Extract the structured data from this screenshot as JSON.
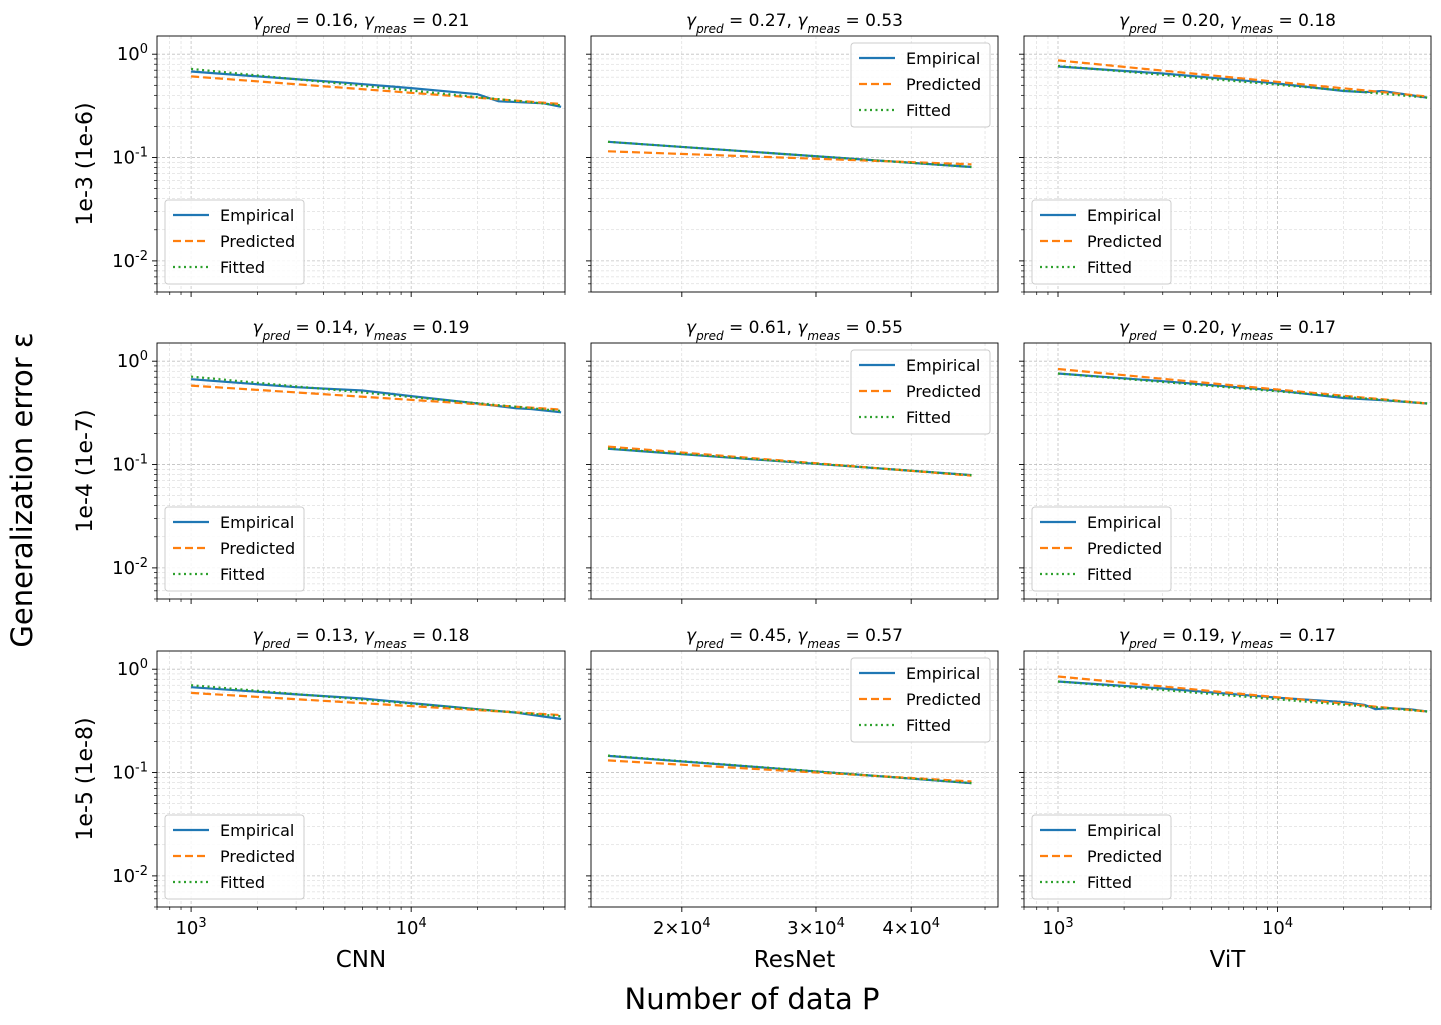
{
  "figure": {
    "suptitle_x": "Number of data P",
    "suptitle_y": "Generalization error ε",
    "row_labels": [
      "1e-3 (1e-6)",
      "1e-4 (1e-7)",
      "1e-5 (1e-8)"
    ],
    "col_labels": [
      "CNN",
      "ResNet",
      "ViT"
    ],
    "colors": {
      "Empirical": "#1f77b4",
      "Predicted": "#ff7f0e",
      "Fitted": "#2ca02c"
    }
  },
  "chart_data": [
    {
      "type": "line",
      "title": "γ_pred = 0.16,  γ_meas = 0.21",
      "gamma_pred": "0.16",
      "gamma_meas": "0.21",
      "xscale": "log",
      "yscale": "log",
      "xlim": [
        700,
        50000
      ],
      "ylim": [
        0.005,
        1.5
      ],
      "xticks": [
        1000,
        10000
      ],
      "xticklabels": [
        "10^3",
        "10^4"
      ],
      "xticklabels_visible": false,
      "yticks": [
        0.01,
        0.1,
        1
      ],
      "yticklabels": [
        "10^-2",
        "10^-1",
        "10^0"
      ],
      "yticklabels_visible": true,
      "ylabel": "1e-3 (1e-6)",
      "xlabel": "",
      "legend": [
        "Empirical",
        "Predicted",
        "Fitted"
      ],
      "legend_loc": "lower left",
      "grid": true,
      "series": [
        {
          "name": "Empirical",
          "style": "solid",
          "x": [
            1000,
            2000,
            5000,
            10000,
            20000,
            25000,
            30000,
            40000,
            48000
          ],
          "y": [
            0.68,
            0.61,
            0.53,
            0.47,
            0.41,
            0.35,
            0.345,
            0.335,
            0.31
          ]
        },
        {
          "name": "Predicted",
          "style": "dashed",
          "x": [
            1000,
            48000
          ],
          "y": [
            0.61,
            0.33
          ]
        },
        {
          "name": "Fitted",
          "style": "dotted",
          "x": [
            1000,
            48000
          ],
          "y": [
            0.72,
            0.32
          ]
        }
      ]
    },
    {
      "type": "line",
      "title": "γ_pred = 0.27,  γ_meas = 0.53",
      "gamma_pred": "0.27",
      "gamma_meas": "0.53",
      "xscale": "log",
      "yscale": "log",
      "xlim": [
        15200,
        52000
      ],
      "ylim": [
        0.005,
        1.5
      ],
      "xticks": [
        20000,
        30000,
        40000
      ],
      "xticklabels": [
        "2×10^4",
        "3×10^4",
        "4×10^4"
      ],
      "xticklabels_visible": false,
      "yticks": [
        0.01,
        0.1,
        1
      ],
      "yticklabels": [
        "10^-2",
        "10^-1",
        "10^0"
      ],
      "yticklabels_visible": false,
      "ylabel": "",
      "xlabel": "",
      "legend": [
        "Empirical",
        "Predicted",
        "Fitted"
      ],
      "legend_loc": "upper right",
      "grid": true,
      "series": [
        {
          "name": "Empirical",
          "style": "solid",
          "x": [
            16000,
            48000
          ],
          "y": [
            0.142,
            0.081
          ]
        },
        {
          "name": "Predicted",
          "style": "dashed",
          "x": [
            16000,
            48000
          ],
          "y": [
            0.115,
            0.086
          ]
        },
        {
          "name": "Fitted",
          "style": "dotted",
          "x": [
            16000,
            48000
          ],
          "y": [
            0.142,
            0.081
          ]
        }
      ]
    },
    {
      "type": "line",
      "title": "γ_pred = 0.20,  γ_meas = 0.18",
      "gamma_pred": "0.20",
      "gamma_meas": "0.18",
      "xscale": "log",
      "yscale": "log",
      "xlim": [
        700,
        50000
      ],
      "ylim": [
        0.005,
        1.5
      ],
      "xticks": [
        1000,
        10000
      ],
      "xticklabels": [
        "10^3",
        "10^4"
      ],
      "xticklabels_visible": false,
      "yticks": [
        0.01,
        0.1,
        1
      ],
      "yticklabels": [
        "10^-2",
        "10^-1",
        "10^0"
      ],
      "yticklabels_visible": false,
      "ylabel": "",
      "xlabel": "",
      "legend": [
        "Empirical",
        "Predicted",
        "Fitted"
      ],
      "legend_loc": "lower left",
      "grid": true,
      "series": [
        {
          "name": "Empirical",
          "style": "solid",
          "x": [
            1000,
            3000,
            10000,
            20000,
            25000,
            30000,
            35000,
            48000
          ],
          "y": [
            0.76,
            0.65,
            0.52,
            0.44,
            0.43,
            0.44,
            0.42,
            0.38
          ]
        },
        {
          "name": "Predicted",
          "style": "dashed",
          "x": [
            1000,
            48000
          ],
          "y": [
            0.87,
            0.39
          ]
        },
        {
          "name": "Fitted",
          "style": "dotted",
          "x": [
            1000,
            48000
          ],
          "y": [
            0.77,
            0.38
          ]
        }
      ]
    },
    {
      "type": "line",
      "title": "γ_pred = 0.14,  γ_meas = 0.19",
      "gamma_pred": "0.14",
      "gamma_meas": "0.19",
      "xscale": "log",
      "yscale": "log",
      "xlim": [
        700,
        50000
      ],
      "ylim": [
        0.005,
        1.5
      ],
      "xticks": [
        1000,
        10000
      ],
      "xticklabels": [
        "10^3",
        "10^4"
      ],
      "xticklabels_visible": false,
      "yticks": [
        0.01,
        0.1,
        1
      ],
      "yticklabels": [
        "10^-2",
        "10^-1",
        "10^0"
      ],
      "yticklabels_visible": true,
      "ylabel": "1e-4 (1e-7)",
      "xlabel": "",
      "legend": [
        "Empirical",
        "Predicted",
        "Fitted"
      ],
      "legend_loc": "lower left",
      "grid": true,
      "series": [
        {
          "name": "Empirical",
          "style": "solid",
          "x": [
            1000,
            3000,
            6000,
            10000,
            20000,
            30000,
            35000,
            48000
          ],
          "y": [
            0.67,
            0.56,
            0.52,
            0.46,
            0.39,
            0.35,
            0.345,
            0.32
          ]
        },
        {
          "name": "Predicted",
          "style": "dashed",
          "x": [
            1000,
            48000
          ],
          "y": [
            0.58,
            0.34
          ]
        },
        {
          "name": "Fitted",
          "style": "dotted",
          "x": [
            1000,
            48000
          ],
          "y": [
            0.71,
            0.33
          ]
        }
      ]
    },
    {
      "type": "line",
      "title": "γ_pred = 0.61,  γ_meas = 0.55",
      "gamma_pred": "0.61",
      "gamma_meas": "0.55",
      "xscale": "log",
      "yscale": "log",
      "xlim": [
        15200,
        52000
      ],
      "ylim": [
        0.005,
        1.5
      ],
      "xticks": [
        20000,
        30000,
        40000
      ],
      "xticklabels": [
        "2×10^4",
        "3×10^4",
        "4×10^4"
      ],
      "xticklabels_visible": false,
      "yticks": [
        0.01,
        0.1,
        1
      ],
      "yticklabels": [
        "10^-2",
        "10^-1",
        "10^0"
      ],
      "yticklabels_visible": false,
      "ylabel": "",
      "xlabel": "",
      "legend": [
        "Empirical",
        "Predicted",
        "Fitted"
      ],
      "legend_loc": "upper right",
      "grid": true,
      "series": [
        {
          "name": "Empirical",
          "style": "solid",
          "x": [
            16000,
            48000
          ],
          "y": [
            0.142,
            0.079
          ]
        },
        {
          "name": "Predicted",
          "style": "dashed",
          "x": [
            16000,
            48000
          ],
          "y": [
            0.149,
            0.078
          ]
        },
        {
          "name": "Fitted",
          "style": "dotted",
          "x": [
            16000,
            48000
          ],
          "y": [
            0.143,
            0.079
          ]
        }
      ]
    },
    {
      "type": "line",
      "title": "γ_pred = 0.20,  γ_meas = 0.17",
      "gamma_pred": "0.20",
      "gamma_meas": "0.17",
      "xscale": "log",
      "yscale": "log",
      "xlim": [
        700,
        50000
      ],
      "ylim": [
        0.005,
        1.5
      ],
      "xticks": [
        1000,
        10000
      ],
      "xticklabels": [
        "10^3",
        "10^4"
      ],
      "xticklabels_visible": false,
      "yticks": [
        0.01,
        0.1,
        1
      ],
      "yticklabels": [
        "10^-2",
        "10^-1",
        "10^0"
      ],
      "yticklabels_visible": false,
      "ylabel": "",
      "xlabel": "",
      "legend": [
        "Empirical",
        "Predicted",
        "Fitted"
      ],
      "legend_loc": "lower left",
      "grid": true,
      "series": [
        {
          "name": "Empirical",
          "style": "solid",
          "x": [
            1000,
            3000,
            10000,
            20000,
            30000,
            48000
          ],
          "y": [
            0.76,
            0.64,
            0.52,
            0.44,
            0.42,
            0.39
          ]
        },
        {
          "name": "Predicted",
          "style": "dashed",
          "x": [
            1000,
            48000
          ],
          "y": [
            0.84,
            0.39
          ]
        },
        {
          "name": "Fitted",
          "style": "dotted",
          "x": [
            1000,
            48000
          ],
          "y": [
            0.76,
            0.39
          ]
        }
      ]
    },
    {
      "type": "line",
      "title": "γ_pred = 0.13,  γ_meas = 0.18",
      "gamma_pred": "0.13",
      "gamma_meas": "0.18",
      "xscale": "log",
      "yscale": "log",
      "xlim": [
        700,
        50000
      ],
      "ylim": [
        0.005,
        1.5
      ],
      "xticks": [
        1000,
        10000
      ],
      "xticklabels": [
        "10^3",
        "10^4"
      ],
      "xticklabels_visible": true,
      "yticks": [
        0.01,
        0.1,
        1
      ],
      "yticklabels": [
        "10^-2",
        "10^-1",
        "10^0"
      ],
      "yticklabels_visible": true,
      "ylabel": "1e-5 (1e-8)",
      "xlabel": "CNN",
      "legend": [
        "Empirical",
        "Predicted",
        "Fitted"
      ],
      "legend_loc": "lower left",
      "grid": true,
      "series": [
        {
          "name": "Empirical",
          "style": "solid",
          "x": [
            1000,
            3000,
            6000,
            10000,
            20000,
            30000,
            48000
          ],
          "y": [
            0.67,
            0.57,
            0.52,
            0.47,
            0.41,
            0.38,
            0.33
          ]
        },
        {
          "name": "Predicted",
          "style": "dashed",
          "x": [
            1000,
            48000
          ],
          "y": [
            0.59,
            0.36
          ]
        },
        {
          "name": "Fitted",
          "style": "dotted",
          "x": [
            1000,
            48000
          ],
          "y": [
            0.7,
            0.35
          ]
        }
      ]
    },
    {
      "type": "line",
      "title": "γ_pred = 0.45,  γ_meas = 0.57",
      "gamma_pred": "0.45",
      "gamma_meas": "0.57",
      "xscale": "log",
      "yscale": "log",
      "xlim": [
        15200,
        52000
      ],
      "ylim": [
        0.005,
        1.5
      ],
      "xticks": [
        20000,
        30000,
        40000
      ],
      "xticklabels": [
        "2×10^4",
        "3×10^4",
        "4×10^4"
      ],
      "xticklabels_visible": true,
      "yticks": [
        0.01,
        0.1,
        1
      ],
      "yticklabels": [
        "10^-2",
        "10^-1",
        "10^0"
      ],
      "yticklabels_visible": false,
      "ylabel": "",
      "xlabel": "ResNet",
      "legend": [
        "Empirical",
        "Predicted",
        "Fitted"
      ],
      "legend_loc": "upper right",
      "grid": true,
      "series": [
        {
          "name": "Empirical",
          "style": "solid",
          "x": [
            16000,
            48000
          ],
          "y": [
            0.145,
            0.079
          ]
        },
        {
          "name": "Predicted",
          "style": "dashed",
          "x": [
            16000,
            48000
          ],
          "y": [
            0.131,
            0.082
          ]
        },
        {
          "name": "Fitted",
          "style": "dotted",
          "x": [
            16000,
            48000
          ],
          "y": [
            0.146,
            0.079
          ]
        }
      ]
    },
    {
      "type": "line",
      "title": "γ_pred = 0.19,  γ_meas = 0.17",
      "gamma_pred": "0.19",
      "gamma_meas": "0.17",
      "xscale": "log",
      "yscale": "log",
      "xlim": [
        700,
        50000
      ],
      "ylim": [
        0.005,
        1.5
      ],
      "xticks": [
        1000,
        10000
      ],
      "xticklabels": [
        "10^3",
        "10^4"
      ],
      "xticklabels_visible": true,
      "yticks": [
        0.01,
        0.1,
        1
      ],
      "yticklabels": [
        "10^-2",
        "10^-1",
        "10^0"
      ],
      "yticklabels_visible": false,
      "ylabel": "",
      "xlabel": "ViT",
      "legend": [
        "Empirical",
        "Predicted",
        "Fitted"
      ],
      "legend_loc": "lower left",
      "grid": true,
      "series": [
        {
          "name": "Empirical",
          "style": "solid",
          "x": [
            1000,
            3000,
            10000,
            20000,
            25000,
            28000,
            32000,
            40000,
            48000
          ],
          "y": [
            0.76,
            0.65,
            0.53,
            0.48,
            0.45,
            0.41,
            0.42,
            0.41,
            0.39
          ]
        },
        {
          "name": "Predicted",
          "style": "dashed",
          "x": [
            1000,
            48000
          ],
          "y": [
            0.85,
            0.39
          ]
        },
        {
          "name": "Fitted",
          "style": "dotted",
          "x": [
            1000,
            48000
          ],
          "y": [
            0.76,
            0.39
          ]
        }
      ]
    }
  ]
}
